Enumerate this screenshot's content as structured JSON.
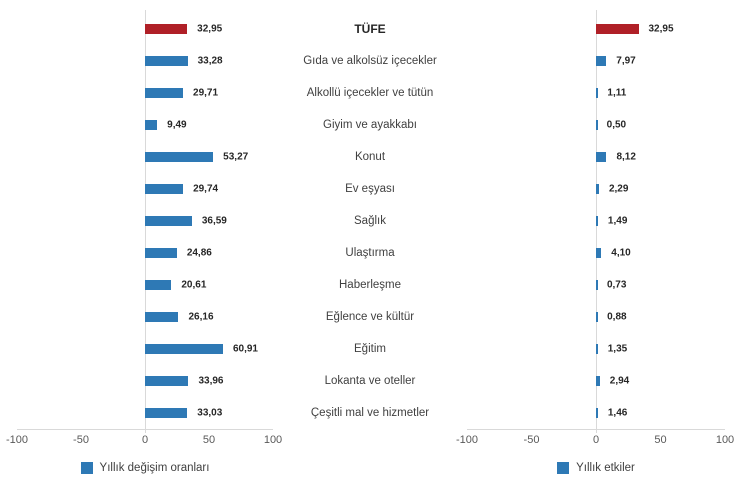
{
  "chart_data": {
    "type": "bar",
    "orientation": "horizontal",
    "title": "",
    "categories": [
      "TÜFE",
      "Gıda ve alkolsüz içecekler",
      "Alkollü içecekler ve tütün",
      "Giyim ve ayakkabı",
      "Konut",
      "Ev eşyası",
      "Sağlık",
      "Ulaştırma",
      "Haberleşme",
      "Eğlence ve kültür",
      "Eğitim",
      "Lokanta ve oteller",
      "Çeşitli mal ve hizmetler"
    ],
    "series": [
      {
        "name": "Yıllık değişim oranları",
        "values": [
          32.95,
          33.28,
          29.71,
          9.49,
          53.27,
          29.74,
          36.59,
          24.86,
          20.61,
          26.16,
          60.91,
          33.96,
          33.03
        ],
        "labels": [
          "32,95",
          "33,28",
          "29,71",
          "9,49",
          "53,27",
          "29,74",
          "36,59",
          "24,86",
          "20,61",
          "26,16",
          "60,91",
          "33,96",
          "33,03"
        ]
      },
      {
        "name": "Yıllık etkiler",
        "values": [
          32.95,
          7.97,
          1.11,
          0.5,
          8.12,
          2.29,
          1.49,
          4.1,
          0.73,
          0.88,
          1.35,
          2.94,
          1.46
        ],
        "labels": [
          "32,95",
          "7,97",
          "1,11",
          "0,50",
          "8,12",
          "2,29",
          "1,49",
          "4,10",
          "0,73",
          "0,88",
          "1,35",
          "2,94",
          "1,46"
        ]
      }
    ],
    "xlim": [
      -100,
      100
    ],
    "xticks": [
      "-100",
      "-50",
      "0",
      "50",
      "100"
    ],
    "highlight_index": 0,
    "legend_position": "bottom",
    "grid": "zero-axis-line-only",
    "colors": {
      "bar": "#2E79B5",
      "highlight": "#B02027",
      "gridline": "#D9D9D9",
      "axis_text": "#595959",
      "category_text": "#404040",
      "value_text": "#262626"
    }
  }
}
